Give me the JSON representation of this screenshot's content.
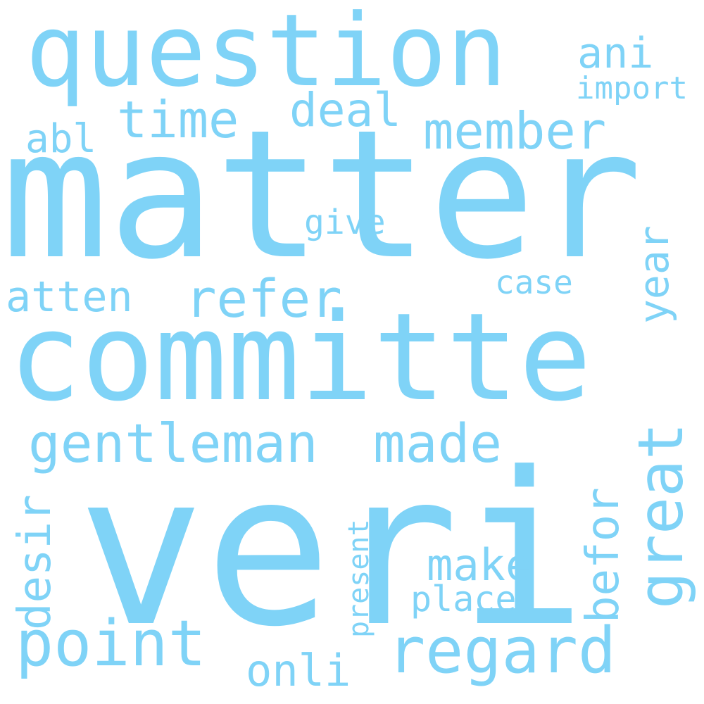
{
  "color": "#7fd3f7",
  "background": "#ffffff",
  "words": {
    "question": "question",
    "ani": "ani",
    "import": "import",
    "time": "time",
    "deal": "deal",
    "member": "member",
    "abl": "abl",
    "matter": "matter",
    "give": "give",
    "case": "case",
    "atten": "atten",
    "refer": "refer",
    "year": "year",
    "committe": "committe",
    "gentleman": "gentleman",
    "made": "made",
    "great": "great",
    "befor": "befor",
    "desir": "desir",
    "present": "present",
    "veri": "veri",
    "make": "make",
    "place": "place",
    "point": "point",
    "regard": "regard",
    "onli": "onli"
  }
}
